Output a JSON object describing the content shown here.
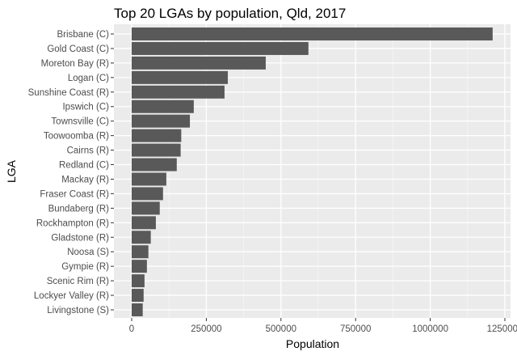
{
  "chart_data": {
    "type": "bar",
    "orientation": "horizontal",
    "title": "Top 20 LGAs by population, Qld, 2017",
    "xlabel": "Population",
    "ylabel": "LGA",
    "xlim": [
      -50000,
      1260000
    ],
    "xticks": [
      0,
      250000,
      500000,
      750000,
      1000000,
      1250000
    ],
    "xtick_labels": [
      "0",
      "250000",
      "500000",
      "750000",
      "1000000",
      "1250000"
    ],
    "grid": true,
    "colors": {
      "bar": "#595959",
      "panel": "#ebebeb",
      "grid": "#ffffff"
    },
    "categories": [
      "Brisbane (C)",
      "Gold Coast (C)",
      "Moreton Bay (R)",
      "Logan (C)",
      "Sunshine Coast (R)",
      "Ipswich (C)",
      "Townsville (C)",
      "Toowoomba (R)",
      "Cairns (R)",
      "Redland (C)",
      "Mackay (R)",
      "Fraser Coast (R)",
      "Bundaberg (R)",
      "Rockhampton (R)",
      "Gladstone (R)",
      "Noosa (S)",
      "Gympie (R)",
      "Scenic Rim (R)",
      "Lockyer Valley (R)",
      "Livingstone (S)"
    ],
    "values": [
      1209000,
      592000,
      449000,
      322000,
      311000,
      208000,
      195000,
      166000,
      164000,
      151000,
      116000,
      105000,
      94000,
      81000,
      64000,
      56000,
      51000,
      43000,
      40000,
      37000
    ]
  }
}
